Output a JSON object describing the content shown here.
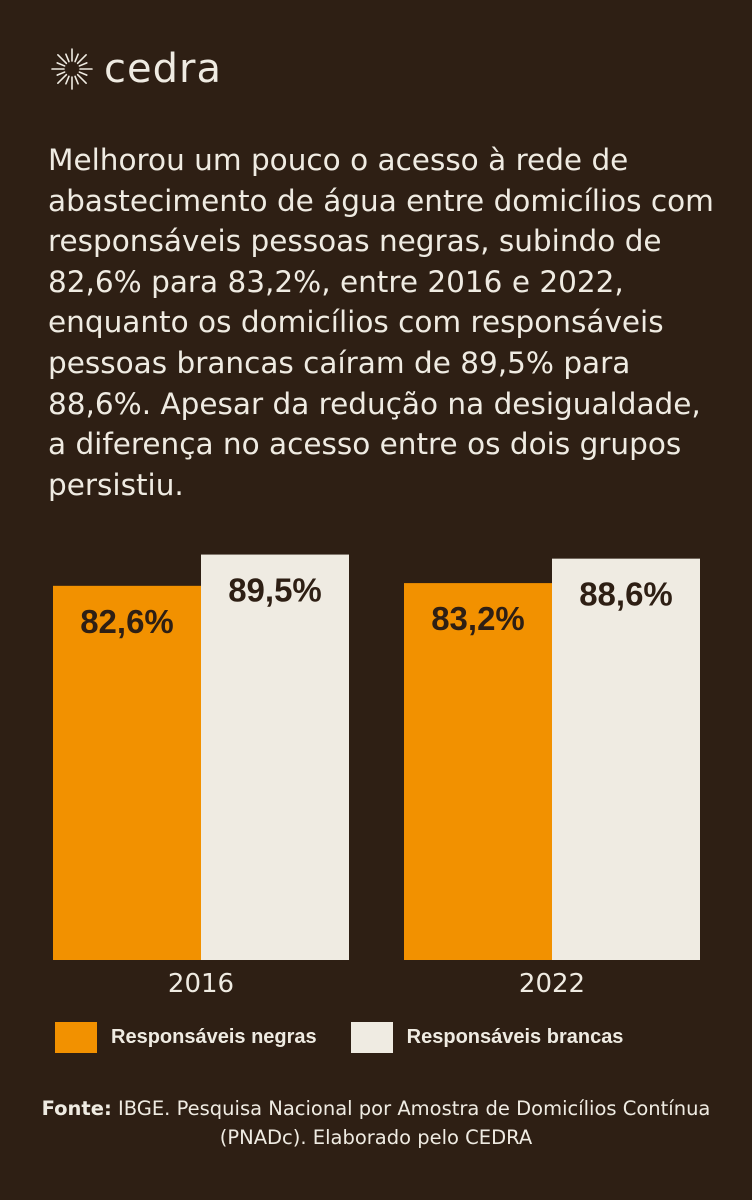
{
  "brand": {
    "name": "cedra",
    "logo_icon": "sunburst-icon"
  },
  "intro_text": "Melhorou um pouco o acesso à rede de abastecimento de água entre domicílios com responsáveis pessoas negras, subindo de 82,6% para 83,2%, entre 2016 e 2022, enquanto os domicílios com responsáveis pessoas brancas caíram de 89,5% para 88,6%. Apesar da redução na desigualdade, a diferença no acesso entre os dois grupos persistiu.",
  "chart_data": {
    "type": "bar",
    "categories": [
      "2016",
      "2022"
    ],
    "series": [
      {
        "name": "Responsáveis negras",
        "color": "#f29100",
        "values": [
          82.6,
          83.2
        ],
        "labels": [
          "82,6%",
          "83,2%"
        ]
      },
      {
        "name": "Responsáveis brancas",
        "color": "#efebe2",
        "values": [
          89.5,
          88.6
        ],
        "labels": [
          "89,5%",
          "88,6%"
        ]
      }
    ],
    "legend_position": "bottom",
    "grid": false
  },
  "source": {
    "label": "Fonte:",
    "text": " IBGE. Pesquisa Nacional por Amostra de Domicílios Contínua (PNADc). Elaborado pelo CEDRA"
  },
  "colors": {
    "background": "#2e1f14",
    "text": "#efebe2",
    "text_dark": "#2e1f14",
    "accent": "#f29100"
  }
}
